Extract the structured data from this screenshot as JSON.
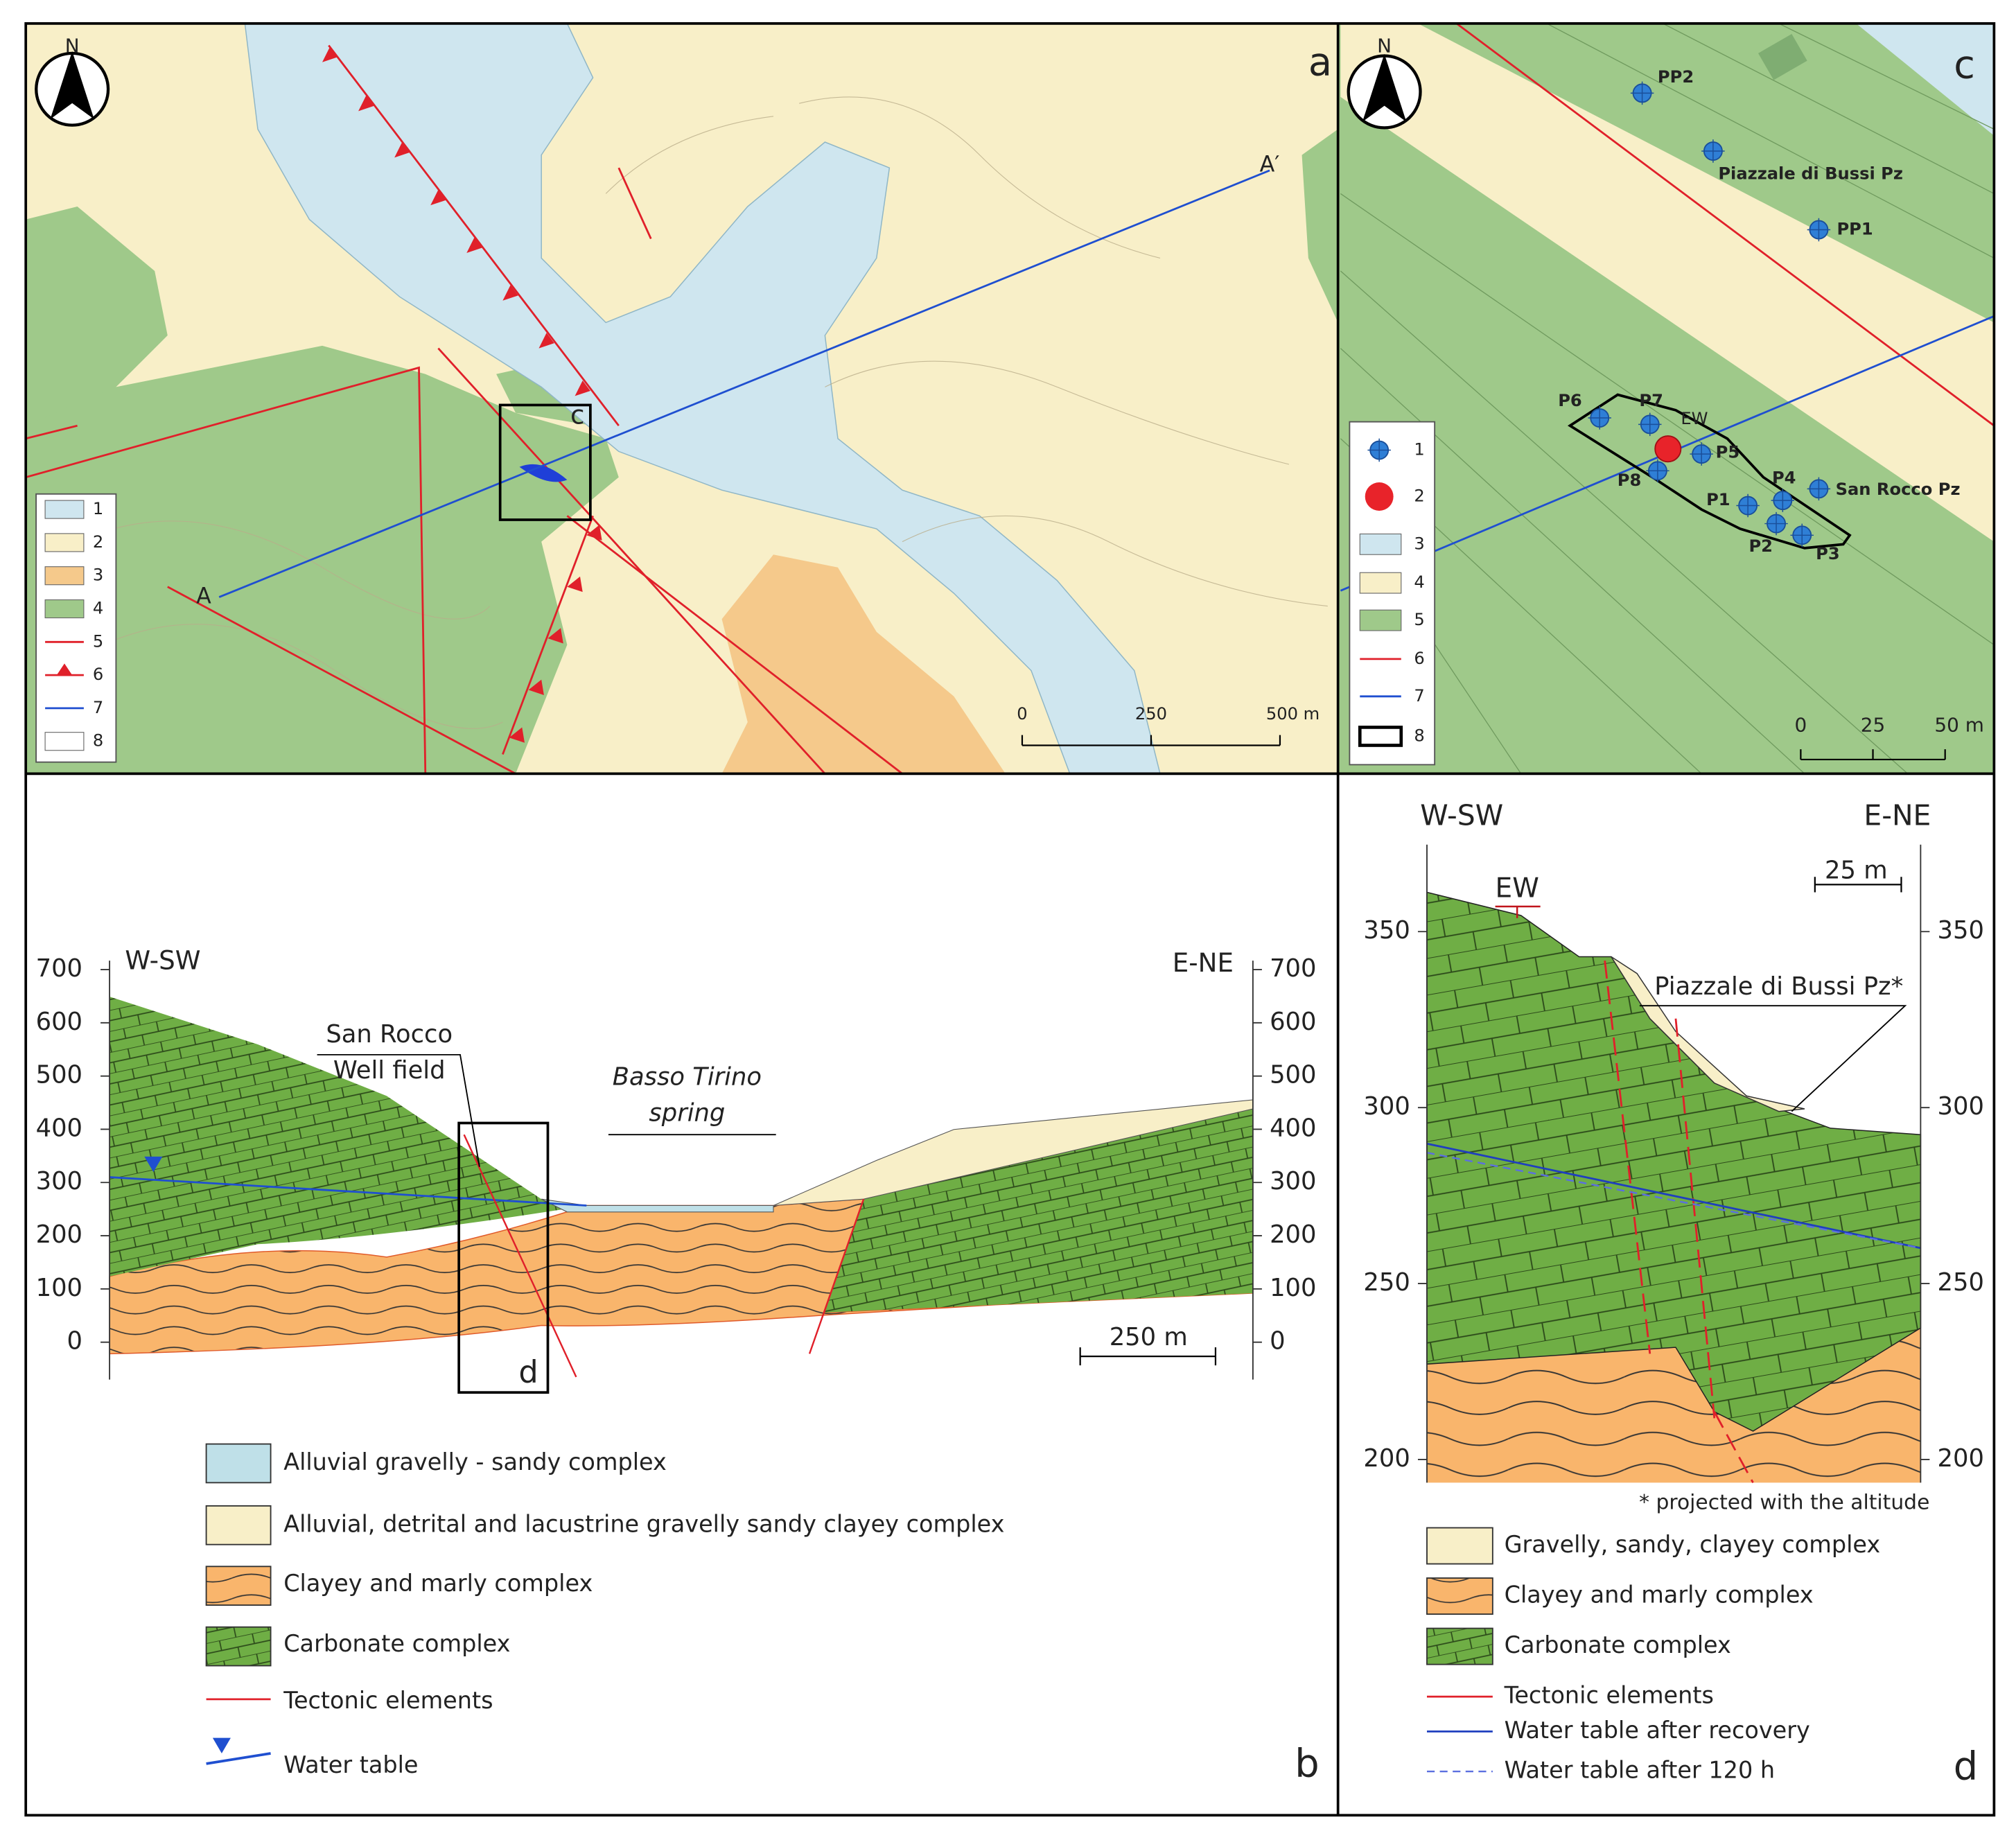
{
  "panel_a": {
    "letter": "a",
    "north": "N",
    "section_ends": [
      "A",
      "A′"
    ],
    "inset": "c",
    "scale_labels": [
      "0",
      "250",
      "500 m"
    ],
    "legend": [
      "1",
      "2",
      "3",
      "4",
      "5",
      "6",
      "7",
      "8"
    ]
  },
  "panel_c": {
    "letter": "c",
    "north": "N",
    "wells": [
      "PP2",
      "Piazzale di Bussi Pz",
      "PP1",
      "P6",
      "P7",
      "EW",
      "P5",
      "P8",
      "P4",
      "San Rocco Pz",
      "P1",
      "P2",
      "P3"
    ],
    "scale_labels": [
      "0",
      "25",
      "50 m"
    ],
    "legend": [
      "1",
      "2",
      "3",
      "4",
      "5",
      "6",
      "7",
      "8"
    ]
  },
  "panel_b": {
    "letter": "b",
    "west": "W-SW",
    "east": "E-NE",
    "elevation_ticks": [
      700,
      600,
      500,
      400,
      300,
      200,
      100,
      0
    ],
    "well_field": [
      "San Rocco",
      "Well field"
    ],
    "spring": [
      "Basso Tirino",
      "spring"
    ],
    "inset": "d",
    "scale_label": "250 m",
    "legend": [
      "Alluvial gravelly - sandy complex",
      "Alluvial, detrital and lacustrine gravelly sandy clayey complex",
      "Clayey and marly complex",
      "Carbonate complex",
      "Tectonic elements",
      "Water table"
    ]
  },
  "panel_d": {
    "letter": "d",
    "west": "W-SW",
    "east": "E-NE",
    "elevation_ticks": [
      350,
      300,
      250,
      200
    ],
    "well": "EW",
    "scale_label": "25 m",
    "piezometer": "Piazzale di Bussi Pz*",
    "footnote": "* projected with the altitude",
    "legend": [
      "Gravelly, sandy, clayey complex",
      "Clayey and marly complex",
      "Carbonate complex",
      "Tectonic elements",
      "Water table after recovery",
      "Water table after 120 h"
    ]
  }
}
